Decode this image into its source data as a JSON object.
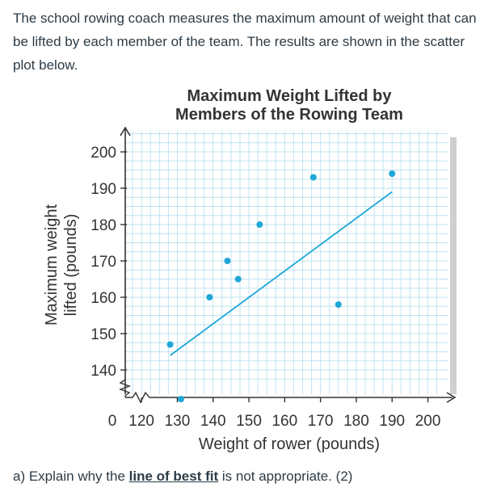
{
  "intro_text": "The school rowing coach measures the maximum amount of weight that can be lifted by each member of the team. The results are shown in the scatter plot below.",
  "question": {
    "prefix": "a) Explain why the ",
    "link": "line of best fit",
    "suffix": " is not appropriate. (2)"
  },
  "colors": {
    "point": "#1ea7d8",
    "line": "#1ea7d8",
    "grid": "#bfe3f2",
    "axis": "#333333"
  },
  "chart_data": {
    "type": "scatter",
    "title": [
      "Maximum Weight Lifted by",
      "Members of the Rowing Team"
    ],
    "xlabel": "Weight of rower (pounds)",
    "ylabel": [
      "Maximum weight",
      "lifted (pounds)"
    ],
    "x_ticks": [
      "0",
      "120",
      "130",
      "140",
      "150",
      "160",
      "170",
      "180",
      "190",
      "200"
    ],
    "y_ticks": [
      "140",
      "150",
      "160",
      "170",
      "180",
      "190",
      "200"
    ],
    "xlim": [
      115,
      205
    ],
    "ylim": [
      137,
      210
    ],
    "axis_breaks": true,
    "grid": true,
    "points": [
      {
        "x": 128,
        "y": 147
      },
      {
        "x": 131,
        "y": 135
      },
      {
        "x": 139,
        "y": 160
      },
      {
        "x": 144,
        "y": 170
      },
      {
        "x": 147,
        "y": 165
      },
      {
        "x": 153,
        "y": 180
      },
      {
        "x": 168,
        "y": 193
      },
      {
        "x": 175,
        "y": 158
      },
      {
        "x": 190,
        "y": 194
      }
    ],
    "best_fit_line": {
      "x1": 128,
      "y1": 144,
      "x2": 190,
      "y2": 189
    }
  }
}
